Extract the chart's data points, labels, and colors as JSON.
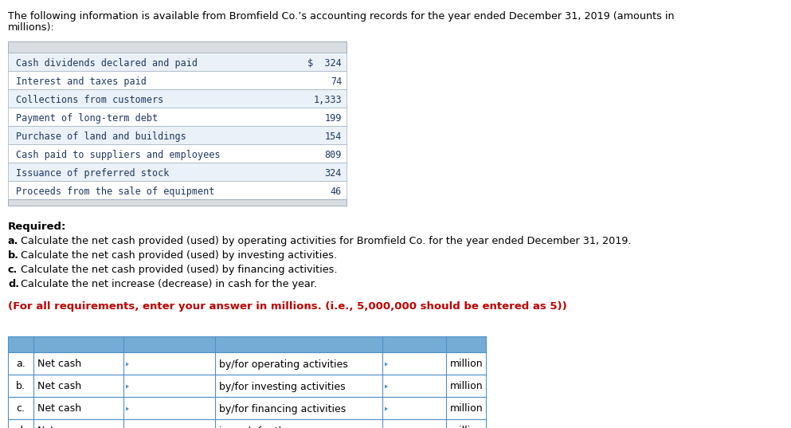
{
  "title_line1": "The following information is available from Bromfield Co.’s accounting records for the year ended December 31, 2019 (amounts in",
  "title_line2": "millions):",
  "data_table": {
    "rows": [
      [
        "Cash dividends declared and paid",
        "$  324"
      ],
      [
        "Interest and taxes paid",
        "74"
      ],
      [
        "Collections from customers",
        "1,333"
      ],
      [
        "Payment of long-term debt",
        "199"
      ],
      [
        "Purchase of land and buildings",
        "154"
      ],
      [
        "Cash paid to suppliers and employees",
        "809"
      ],
      [
        "Issuance of preferred stock",
        "324"
      ],
      [
        "Proceeds from the sale of equipment",
        "46"
      ]
    ],
    "header_bg": "#d9dce1",
    "footer_bg": "#d9dce1",
    "row_bg_even": "#eaf1f8",
    "row_bg_odd": "#ffffff",
    "border_color": "#a0b0c0",
    "text_color": "#1f3864"
  },
  "required_text": "Required:",
  "required_items": [
    [
      "a.",
      " Calculate the net cash provided (used) by operating activities for Bromfield Co. for the year ended December 31, 2019."
    ],
    [
      "b.",
      " Calculate the net cash provided (used) by investing activities."
    ],
    [
      "c.",
      " Calculate the net cash provided (used) by financing activities."
    ],
    [
      "d.",
      " Calculate the net increase (decrease) in cash for the year."
    ]
  ],
  "note_text": "(For all requirements, enter your answer in millions. (i.e., 5,000,000 should be entered as 5))",
  "note_color": "#c00000",
  "answer_table": {
    "header_bg": "#74acd5",
    "border_color": "#4f91c9",
    "rows": [
      [
        "a.",
        "Net cash",
        "by/for operating activities",
        "million"
      ],
      [
        "b.",
        "Net cash",
        "by/for investing activities",
        "million"
      ],
      [
        "c.",
        "Net cash",
        "by/for financing activities",
        "million"
      ],
      [
        "d.",
        "Net",
        "in cash for the year",
        "million"
      ]
    ],
    "triangle_color": "#4f91c9"
  },
  "bg_color": "#ffffff",
  "font_family": "DejaVu Sans",
  "mono_font": "DejaVu Sans Mono"
}
